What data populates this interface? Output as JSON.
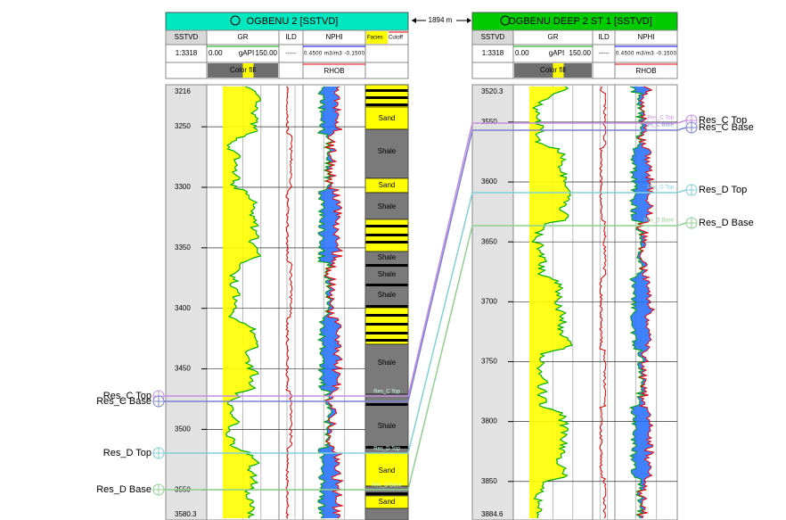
{
  "distance": "1894 m",
  "markers": [
    "Res_C Top",
    "Res_C Base",
    "Res_D Top",
    "Res_D Base"
  ],
  "wells": [
    {
      "title": "OGBENU 2 [SSTVD]",
      "headers": {
        "depth": "SSTVD",
        "gr": "GR",
        "ild": "ILD",
        "nphi": "NPHI",
        "facies": "Facies",
        "cutoff": "Cutoff",
        "scale": "1:3318",
        "gr_min": "0.00",
        "gr_unit": "gAPI",
        "gr_max": "150.00",
        "ild_scale": "------",
        "nphi_scale": "0.4500 m3/m3 -0.1500",
        "fill": "Color fill",
        "rhob": "RHOB"
      },
      "depth_top": 3216,
      "depth_bottom": 3580.3,
      "depth_ticks": [
        3250,
        3300,
        3350,
        3400,
        3450,
        3500,
        3550
      ],
      "facies": [
        "Sand",
        "Shale",
        "Sand",
        "Shale",
        "Shale",
        "Shale",
        "Shale",
        "Shale",
        "Shale",
        "Sand",
        "Sand"
      ]
    },
    {
      "title": "OGBENU DEEP 2 ST 1 [SSTVD]",
      "headers": {
        "depth": "SSTVD",
        "gr": "GR",
        "ild": "ILD",
        "nphi": "NPHI",
        "scale": "1:3318",
        "gr_min": "0.00",
        "gr_unit": "gAPI",
        "gr_max": "150.00",
        "ild_scale": "------",
        "nphi_scale": "0.4500 m3/m3 -0.1500",
        "fill": "Color fill",
        "rhob": "RHOB"
      },
      "depth_top": 3520.3,
      "depth_bottom": 3884.6,
      "depth_ticks": [
        3550,
        3600,
        3650,
        3700,
        3750,
        3800,
        3850
      ]
    }
  ]
}
